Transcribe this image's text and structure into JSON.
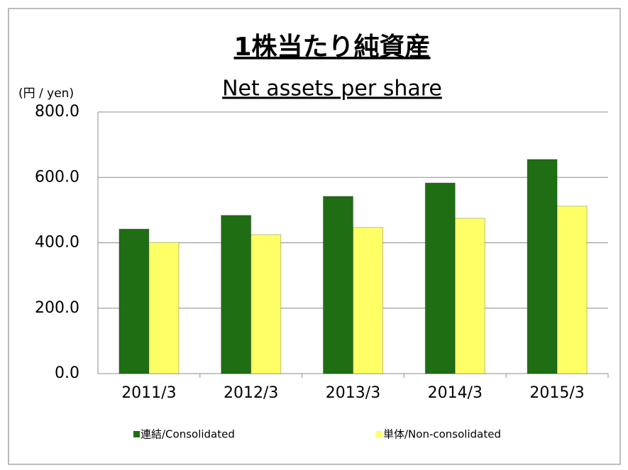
{
  "chart_data": {
    "type": "bar",
    "title": "1株当たり純資産",
    "subtitle": "Net assets per share",
    "y_label": "(円 / yen)",
    "categories": [
      "2011/3",
      "2012/3",
      "2013/3",
      "2014/3",
      "2015/3"
    ],
    "series": [
      {
        "name": "連結/Consolidated",
        "color": "#1f6e14",
        "values": [
          442,
          484,
          542,
          583,
          655
        ]
      },
      {
        "name": "単体/Non-consolidated",
        "color": "#ffff66",
        "values": [
          401,
          425,
          447,
          475,
          512
        ]
      }
    ],
    "ylim": [
      0,
      800
    ],
    "yticks": [
      {
        "value": 0,
        "label": "0.0"
      },
      {
        "value": 200,
        "label": "200.0"
      },
      {
        "value": 400,
        "label": "400.0"
      },
      {
        "value": 600,
        "label": "600.0"
      },
      {
        "value": 800,
        "label": "800.0"
      }
    ],
    "grid": true,
    "legend": "bottom"
  }
}
